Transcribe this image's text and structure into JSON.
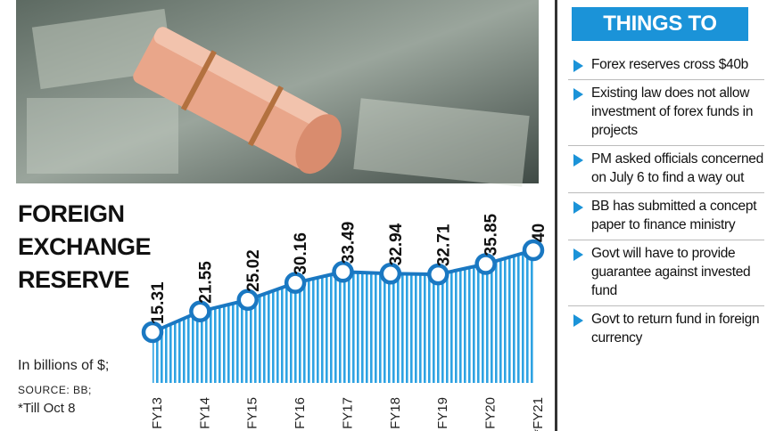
{
  "chart_data": {
    "type": "line",
    "title": "FOREIGN EXCHANGE RESERVE",
    "unit_note": "In billions of $;",
    "source": "SOURCE: BB;",
    "footnote": "*Till Oct 8",
    "categories": [
      "FY13",
      "FY14",
      "FY15",
      "FY16",
      "FY17",
      "FY18",
      "FY19",
      "FY20",
      "*FY21"
    ],
    "values": [
      15.31,
      21.55,
      25.02,
      30.16,
      33.49,
      32.94,
      32.71,
      35.85,
      40
    ],
    "color": "#1a78c2"
  },
  "sidebar": {
    "title": "THINGS TO KNOW",
    "items": [
      "Forex reserves cross $40b",
      "Existing law does not allow investment of forex funds in projects",
      "PM asked officials concerned on July 6 to find a way out",
      "BB has submitted a concept paper to finance ministry",
      "Govt will have to provide guarantee against invested fund",
      "Govt to return fund in foreign currency"
    ]
  }
}
